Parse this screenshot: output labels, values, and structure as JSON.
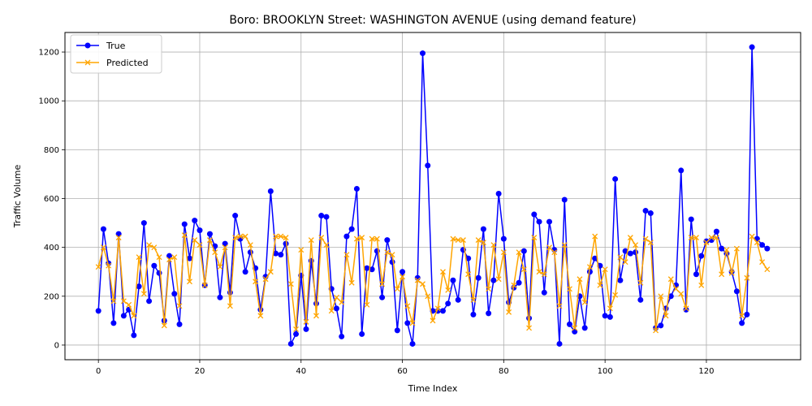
{
  "chart_data": {
    "type": "line",
    "title": "Boro: BROOKLYN Street: WASHINGTON AVENUE (using demand feature)",
    "xlabel": "Time Index",
    "ylabel": "Traffic Volume",
    "xlim": [
      -6.6,
      138.6
    ],
    "ylim": [
      -60,
      1280
    ],
    "xticks": [
      0,
      20,
      40,
      60,
      80,
      100,
      120
    ],
    "yticks": [
      0,
      200,
      400,
      600,
      800,
      1000,
      1200
    ],
    "grid": true,
    "legend_position": "upper-left",
    "series": [
      {
        "name": "True",
        "color": "#0000ff",
        "marker": "circle",
        "values": [
          140,
          475,
          335,
          90,
          455,
          120,
          145,
          40,
          240,
          500,
          180,
          325,
          295,
          100,
          365,
          210,
          85,
          495,
          355,
          510,
          470,
          245,
          455,
          405,
          195,
          415,
          215,
          530,
          435,
          300,
          380,
          315,
          145,
          280,
          630,
          375,
          370,
          415,
          5,
          45,
          285,
          65,
          345,
          170,
          530,
          525,
          230,
          150,
          35,
          445,
          475,
          640,
          45,
          315,
          310,
          385,
          195,
          430,
          340,
          60,
          300,
          90,
          5,
          275,
          1195,
          735,
          140,
          140,
          140,
          170,
          265,
          185,
          390,
          355,
          125,
          275,
          475,
          130,
          265,
          620,
          435,
          175,
          235,
          255,
          385,
          110,
          535,
          505,
          215,
          505,
          390,
          5,
          595,
          85,
          55,
          200,
          70,
          300,
          355,
          325,
          120,
          115,
          680,
          265,
          385,
          375,
          380,
          185,
          550,
          540,
          70,
          80,
          150,
          200,
          245,
          715,
          145,
          515,
          290,
          365,
          425,
          430,
          465,
          395,
          375,
          300,
          220,
          90,
          125,
          1220,
          435,
          410,
          395
        ]
      },
      {
        "name": "Predicted",
        "color": "#ffa500",
        "marker": "x",
        "values": [
          320,
          400,
          325,
          180,
          440,
          180,
          165,
          120,
          360,
          210,
          410,
          400,
          360,
          80,
          350,
          360,
          160,
          450,
          260,
          430,
          410,
          245,
          430,
          380,
          320,
          400,
          160,
          440,
          445,
          445,
          410,
          260,
          120,
          270,
          300,
          445,
          445,
          440,
          250,
          65,
          390,
          95,
          430,
          120,
          440,
          410,
          140,
          195,
          175,
          370,
          255,
          435,
          440,
          165,
          435,
          435,
          250,
          380,
          370,
          230,
          280,
          160,
          90,
          265,
          250,
          200,
          100,
          150,
          300,
          225,
          435,
          430,
          430,
          290,
          185,
          430,
          420,
          230,
          410,
          270,
          380,
          135,
          245,
          380,
          310,
          70,
          440,
          300,
          290,
          400,
          380,
          160,
          410,
          230,
          70,
          270,
          175,
          320,
          445,
          245,
          310,
          150,
          205,
          360,
          340,
          440,
          410,
          255,
          435,
          420,
          60,
          200,
          120,
          270,
          230,
          210,
          150,
          440,
          440,
          245,
          420,
          440,
          440,
          290,
          390,
          295,
          395,
          120,
          275,
          445,
          420,
          340,
          310
        ]
      }
    ]
  }
}
